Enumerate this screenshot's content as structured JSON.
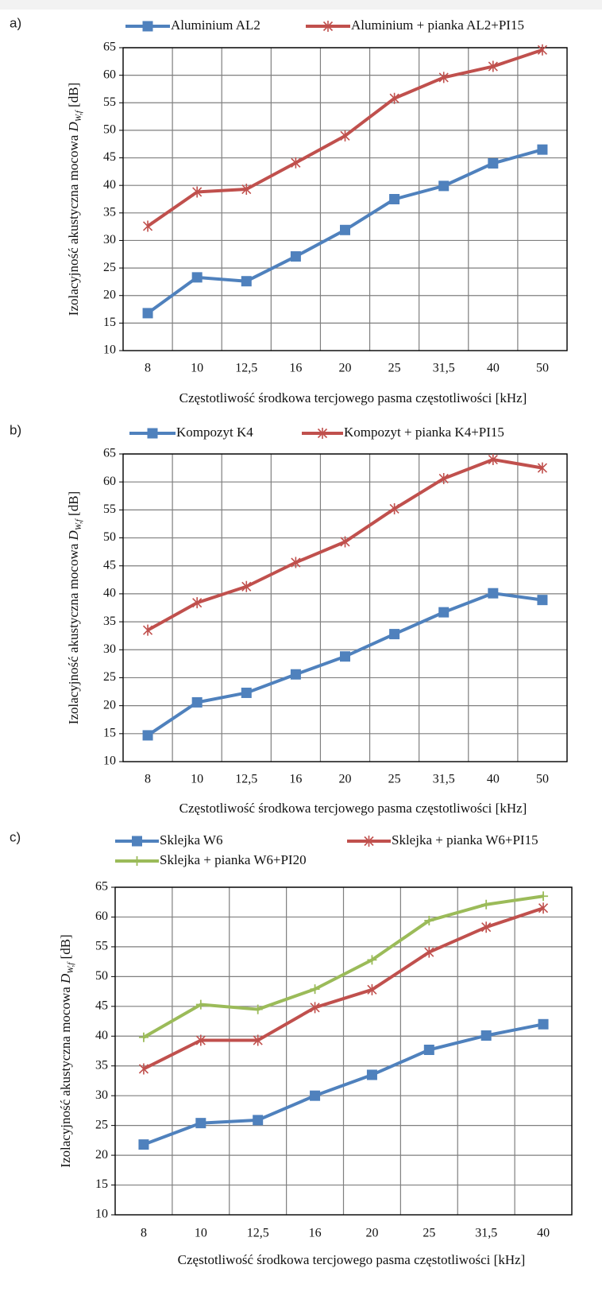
{
  "colors": {
    "blue": "#4f81bd",
    "red": "#c0504d",
    "green": "#9bbb59",
    "grid": "#7f7f7f",
    "frame": "#000000"
  },
  "chart_data": [
    {
      "type": "line",
      "panel_label": "a)",
      "categories": [
        "8",
        "10",
        "12,5",
        "16",
        "20",
        "25",
        "31,5",
        "40",
        "50"
      ],
      "series": [
        {
          "name": "Aluminium AL2",
          "marker": "square",
          "color": "#4f81bd",
          "values": [
            16.8,
            23.3,
            22.6,
            27.1,
            31.9,
            37.5,
            39.9,
            44.0,
            46.5
          ]
        },
        {
          "name": "Aluminium + pianka AL2+PI15",
          "marker": "star",
          "color": "#c0504d",
          "values": [
            32.6,
            38.8,
            39.3,
            44.1,
            49.0,
            55.8,
            59.6,
            61.6,
            64.6
          ]
        }
      ],
      "ylabel_main": "Izolacyjność akustyczna mocowa ",
      "ylabel_symbol": "D",
      "ylabel_sub": "W,f",
      "ylabel_unit": " [dB]",
      "xlabel": "Częstotliwość środkowa tercjowego pasma częstotliwości [kHz]",
      "ylim": [
        10,
        65
      ],
      "ytick_step": 5,
      "grid": true,
      "legend": "top"
    },
    {
      "type": "line",
      "panel_label": "b)",
      "categories": [
        "8",
        "10",
        "12,5",
        "16",
        "20",
        "25",
        "31,5",
        "40",
        "50"
      ],
      "series": [
        {
          "name": "Kompozyt K4",
          "marker": "square",
          "color": "#4f81bd",
          "values": [
            14.7,
            20.6,
            22.3,
            25.6,
            28.8,
            32.8,
            36.7,
            40.1,
            38.9
          ]
        },
        {
          "name": "Kompozyt + pianka K4+PI15",
          "marker": "star",
          "color": "#c0504d",
          "values": [
            33.5,
            38.4,
            41.3,
            45.6,
            49.3,
            55.2,
            60.6,
            64.0,
            62.5
          ]
        }
      ],
      "ylabel_main": "Izolacyjność akustyczna mocowa ",
      "ylabel_symbol": "D",
      "ylabel_sub": "W,f",
      "ylabel_unit": " [dB]",
      "xlabel": "Częstotliwość środkowa tercjowego pasma częstotliwości [kHz]",
      "ylim": [
        10,
        65
      ],
      "ytick_step": 5,
      "grid": true,
      "legend": "top"
    },
    {
      "type": "line",
      "panel_label": "c)",
      "categories": [
        "8",
        "10",
        "12,5",
        "16",
        "20",
        "25",
        "31,5",
        "40"
      ],
      "series": [
        {
          "name": "Sklejka W6",
          "marker": "square",
          "color": "#4f81bd",
          "values": [
            21.8,
            25.4,
            25.9,
            30.0,
            33.5,
            37.7,
            40.1,
            42.0
          ]
        },
        {
          "name": "Sklejka + pianka W6+PI15",
          "marker": "star",
          "color": "#c0504d",
          "values": [
            34.5,
            39.3,
            39.3,
            44.8,
            47.8,
            54.1,
            58.3,
            61.5
          ]
        },
        {
          "name": "Sklejka + pianka W6+PI20",
          "marker": "plus",
          "color": "#9bbb59",
          "values": [
            39.8,
            45.3,
            44.5,
            47.9,
            52.8,
            59.4,
            62.1,
            63.5
          ]
        }
      ],
      "ylabel_main": "Izolacyjność akustyczna mocowa ",
      "ylabel_symbol": "D",
      "ylabel_sub": "W,f",
      "ylabel_unit": " [dB]",
      "xlabel": "Częstotliwość środkowa tercjowego pasma częstotliwości [kHz]",
      "ylim": [
        10,
        65
      ],
      "ytick_step": 5,
      "grid": true,
      "legend": "top"
    }
  ]
}
